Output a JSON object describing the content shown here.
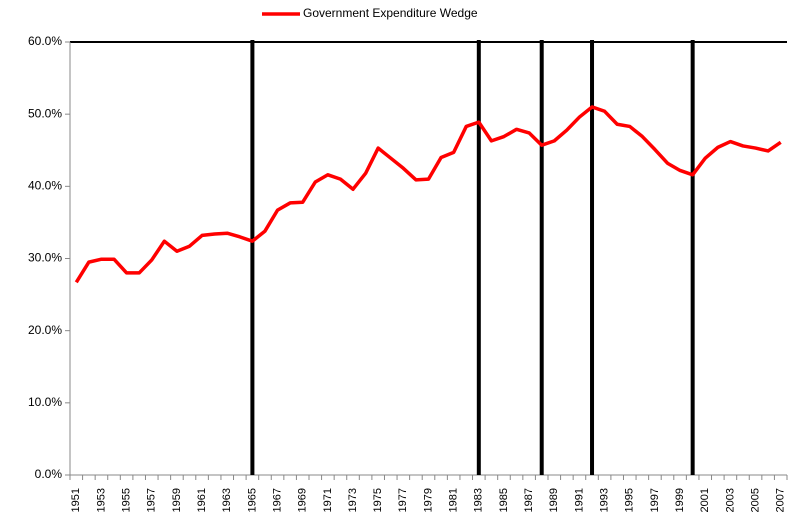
{
  "chart_data": {
    "type": "line",
    "categories": [
      1951,
      null,
      1953,
      null,
      1955,
      null,
      1957,
      null,
      1959,
      null,
      1961,
      null,
      1963,
      null,
      1965,
      null,
      1967,
      null,
      1969,
      null,
      1971,
      null,
      1973,
      null,
      1975,
      null,
      1977,
      null,
      1979,
      null,
      1981,
      null,
      1983,
      null,
      1985,
      null,
      1987,
      null,
      1989,
      null,
      1991,
      null,
      1993,
      null,
      1995,
      null,
      1997,
      null,
      1999,
      null,
      2001,
      null,
      2003,
      null,
      2005,
      null,
      2007
    ],
    "series": [
      {
        "name": "Government Expenditure Wedge",
        "color": "#ff0000",
        "values": [
          26.7,
          29.5,
          29.9,
          29.9,
          28.0,
          28.0,
          29.8,
          32.4,
          31.0,
          31.7,
          33.2,
          33.4,
          33.5,
          33.0,
          32.4,
          33.8,
          36.7,
          37.7,
          37.8,
          40.6,
          41.6,
          41.0,
          39.6,
          41.8,
          45.3,
          43.9,
          42.5,
          40.9,
          41.0,
          44.0,
          44.7,
          48.3,
          48.9,
          46.3,
          46.9,
          47.9,
          47.4,
          45.7,
          46.3,
          47.8,
          49.6,
          51.0,
          50.4,
          48.6,
          48.3,
          46.9,
          45.1,
          43.2,
          42.2,
          41.6,
          43.9,
          45.4,
          46.2,
          45.6,
          45.3,
          44.9,
          46.1
        ]
      }
    ],
    "ylim": [
      0,
      60
    ],
    "yticks": [
      {
        "value": 0,
        "label": "0.0%"
      },
      {
        "value": 10,
        "label": "10.0%"
      },
      {
        "value": 20,
        "label": "20.0%"
      },
      {
        "value": 30,
        "label": "30.0%"
      },
      {
        "value": 40,
        "label": "40.0%"
      },
      {
        "value": 50,
        "label": "50.0%"
      },
      {
        "value": 60,
        "label": "60.0%"
      }
    ],
    "vlines": [
      1965,
      1983,
      1988,
      1992,
      2000
    ],
    "legend": "top"
  }
}
